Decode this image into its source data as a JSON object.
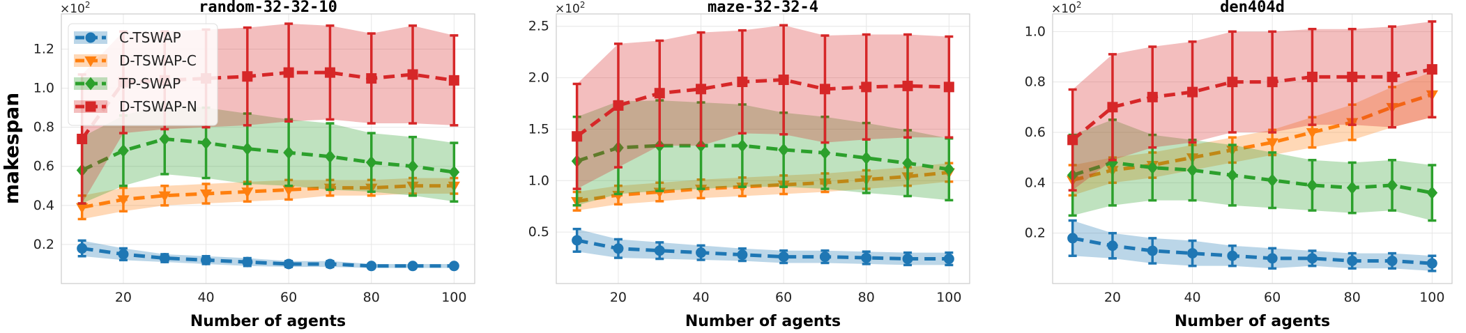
{
  "figure": {
    "ylabel": "makespan",
    "xlabel": "Number of agents",
    "multiplier": "×10²"
  },
  "legend": {
    "placement": "top-left",
    "entries": [
      {
        "label": "C-TSWAP",
        "color": "#1f77b4",
        "marker": "circle"
      },
      {
        "label": "D-TSWAP-C",
        "color": "#ff7f0e",
        "marker": "triangle-down"
      },
      {
        "label": "TP-SWAP",
        "color": "#2ca02c",
        "marker": "diamond"
      },
      {
        "label": "D-TSWAP-N",
        "color": "#d62728",
        "marker": "square"
      }
    ]
  },
  "chart_data": [
    {
      "type": "line",
      "title": "random-32-32-10",
      "xlabel": "Number of agents",
      "ylabel": "makespan",
      "x": [
        10,
        20,
        30,
        40,
        50,
        60,
        70,
        80,
        90,
        100
      ],
      "xlim": [
        5,
        105
      ],
      "ylim": [
        0.0,
        1.38
      ],
      "y_scale_label": "×10²",
      "xticks": [
        20,
        40,
        60,
        80,
        100
      ],
      "yticks": [
        0.2,
        0.4,
        0.6,
        0.8,
        1.0,
        1.2
      ],
      "ytick_labels": [
        "0.2",
        "0.4",
        "0.6",
        "0.8",
        "1.0",
        "1.2"
      ],
      "grid": true,
      "legend": "top-left",
      "series": [
        {
          "name": "C-TSWAP",
          "color": "#1f77b4",
          "marker": "circle",
          "values": [
            0.18,
            0.15,
            0.13,
            0.12,
            0.11,
            0.1,
            0.1,
            0.09,
            0.09,
            0.09
          ],
          "err": [
            0.04,
            0.03,
            0.02,
            0.02,
            0.02,
            0.015,
            0.015,
            0.01,
            0.01,
            0.01
          ]
        },
        {
          "name": "D-TSWAP-C",
          "color": "#ff7f0e",
          "marker": "triangle-down",
          "values": [
            0.39,
            0.43,
            0.45,
            0.46,
            0.47,
            0.48,
            0.49,
            0.49,
            0.5,
            0.5
          ],
          "err": [
            0.06,
            0.06,
            0.05,
            0.05,
            0.05,
            0.05,
            0.04,
            0.04,
            0.04,
            0.04
          ]
        },
        {
          "name": "TP-SWAP",
          "color": "#2ca02c",
          "marker": "diamond",
          "values": [
            0.58,
            0.68,
            0.74,
            0.72,
            0.69,
            0.67,
            0.65,
            0.62,
            0.6,
            0.57
          ],
          "err": [
            0.17,
            0.18,
            0.18,
            0.18,
            0.18,
            0.17,
            0.17,
            0.15,
            0.15,
            0.15
          ]
        },
        {
          "name": "D-TSWAP-N",
          "color": "#d62728",
          "marker": "square",
          "values": [
            0.74,
            1.03,
            1.04,
            1.05,
            1.06,
            1.08,
            1.08,
            1.05,
            1.07,
            1.04
          ],
          "err": [
            0.33,
            0.26,
            0.25,
            0.25,
            0.25,
            0.25,
            0.24,
            0.23,
            0.25,
            0.23
          ]
        }
      ]
    },
    {
      "type": "line",
      "title": "maze-32-32-4",
      "xlabel": "Number of agents",
      "x": [
        10,
        20,
        30,
        40,
        50,
        60,
        70,
        80,
        90,
        100
      ],
      "xlim": [
        5,
        105
      ],
      "ylim": [
        0.0,
        2.62
      ],
      "y_scale_label": "×10²",
      "xticks": [
        20,
        40,
        60,
        80,
        100
      ],
      "yticks": [
        0.5,
        1.0,
        1.5,
        2.0,
        2.5
      ],
      "ytick_labels": [
        "0.5",
        "1.0",
        "1.5",
        "2.0",
        "2.5"
      ],
      "grid": true,
      "series": [
        {
          "name": "C-TSWAP",
          "color": "#1f77b4",
          "marker": "circle",
          "values": [
            0.42,
            0.34,
            0.32,
            0.3,
            0.28,
            0.26,
            0.26,
            0.25,
            0.24,
            0.24
          ],
          "err": [
            0.11,
            0.09,
            0.08,
            0.07,
            0.06,
            0.06,
            0.06,
            0.06,
            0.06,
            0.06
          ]
        },
        {
          "name": "D-TSWAP-C",
          "color": "#ff7f0e",
          "marker": "triangle-down",
          "values": [
            0.8,
            0.86,
            0.89,
            0.92,
            0.94,
            0.96,
            0.98,
            1.01,
            1.04,
            1.08
          ],
          "err": [
            0.09,
            0.09,
            0.09,
            0.09,
            0.09,
            0.09,
            0.09,
            0.09,
            0.09,
            0.09
          ]
        },
        {
          "name": "TP-SWAP",
          "color": "#2ca02c",
          "marker": "diamond",
          "values": [
            1.19,
            1.32,
            1.34,
            1.34,
            1.34,
            1.3,
            1.27,
            1.22,
            1.17,
            1.11
          ],
          "err": [
            0.43,
            0.45,
            0.44,
            0.42,
            0.4,
            0.36,
            0.35,
            0.34,
            0.32,
            0.3
          ]
        },
        {
          "name": "D-TSWAP-N",
          "color": "#d62728",
          "marker": "square",
          "values": [
            1.43,
            1.73,
            1.85,
            1.89,
            1.96,
            1.98,
            1.89,
            1.91,
            1.92,
            1.91
          ],
          "err": [
            0.51,
            0.6,
            0.51,
            0.55,
            0.5,
            0.53,
            0.52,
            0.51,
            0.5,
            0.49
          ]
        }
      ]
    },
    {
      "type": "line",
      "title": "den404d",
      "xlabel": "Number of agents",
      "x": [
        10,
        20,
        30,
        40,
        50,
        60,
        70,
        80,
        90,
        100
      ],
      "xlim": [
        5,
        105
      ],
      "ylim": [
        0.0,
        1.07
      ],
      "y_scale_label": "×10²",
      "xticks": [
        20,
        40,
        60,
        80,
        100
      ],
      "yticks": [
        0.2,
        0.4,
        0.6,
        0.8,
        1.0
      ],
      "ytick_labels": [
        "0.2",
        "0.4",
        "0.6",
        "0.8",
        "1.0"
      ],
      "grid": true,
      "series": [
        {
          "name": "C-TSWAP",
          "color": "#1f77b4",
          "marker": "circle",
          "values": [
            0.18,
            0.15,
            0.13,
            0.12,
            0.11,
            0.1,
            0.1,
            0.09,
            0.09,
            0.08
          ],
          "err": [
            0.07,
            0.05,
            0.05,
            0.05,
            0.04,
            0.04,
            0.03,
            0.03,
            0.03,
            0.03
          ]
        },
        {
          "name": "D-TSWAP-C",
          "color": "#ff7f0e",
          "marker": "triangle-down",
          "values": [
            0.41,
            0.45,
            0.47,
            0.5,
            0.53,
            0.56,
            0.6,
            0.64,
            0.7,
            0.75
          ],
          "err": [
            0.06,
            0.05,
            0.05,
            0.05,
            0.05,
            0.05,
            0.06,
            0.07,
            0.08,
            0.09
          ]
        },
        {
          "name": "TP-SWAP",
          "color": "#2ca02c",
          "marker": "diamond",
          "values": [
            0.43,
            0.48,
            0.46,
            0.45,
            0.43,
            0.41,
            0.39,
            0.38,
            0.39,
            0.36
          ],
          "err": [
            0.16,
            0.17,
            0.13,
            0.12,
            0.12,
            0.11,
            0.1,
            0.1,
            0.1,
            0.11
          ]
        },
        {
          "name": "D-TSWAP-N",
          "color": "#d62728",
          "marker": "square",
          "values": [
            0.57,
            0.7,
            0.74,
            0.76,
            0.8,
            0.8,
            0.82,
            0.82,
            0.82,
            0.85
          ],
          "err": [
            0.2,
            0.21,
            0.2,
            0.2,
            0.2,
            0.2,
            0.19,
            0.19,
            0.2,
            0.19
          ]
        }
      ]
    }
  ]
}
